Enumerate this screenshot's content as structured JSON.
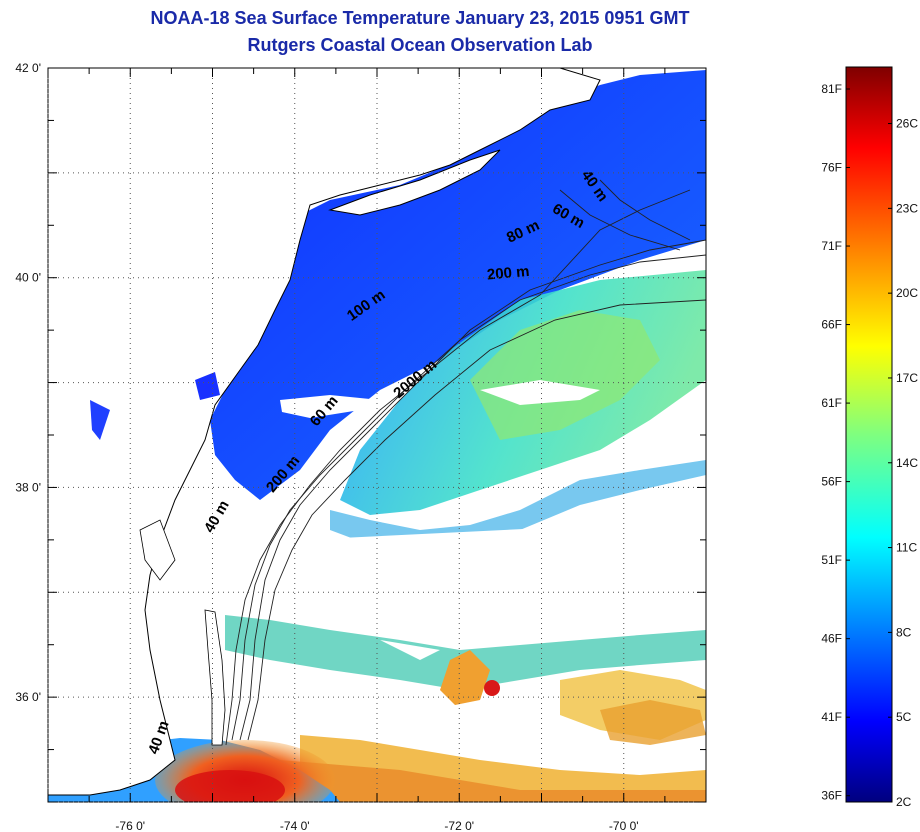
{
  "header": {
    "title": "NOAA-18 Sea Surface Temperature January 23, 2015 0951 GMT",
    "subtitle": "Rutgers Coastal Ocean Observation Lab"
  },
  "map": {
    "lon_range": [
      -77,
      -69
    ],
    "lat_range": [
      35,
      42
    ],
    "lon_ticks": [
      {
        "value": -76,
        "label": "-76 0'"
      },
      {
        "value": -74,
        "label": "-74 0'"
      },
      {
        "value": -72,
        "label": "-72 0'"
      },
      {
        "value": -70,
        "label": "-70 0'"
      }
    ],
    "lat_ticks": [
      {
        "value": 42,
        "label": "42 0'"
      },
      {
        "value": 40,
        "label": "40 0'"
      },
      {
        "value": 38,
        "label": "38 0'"
      },
      {
        "value": 36,
        "label": "36 0'"
      }
    ],
    "grid": "dotted",
    "contour_labels": [
      {
        "text": "40 m",
        "lon": -70.4,
        "lat": 40.85,
        "angle": 55
      },
      {
        "text": "60 m",
        "lon": -70.7,
        "lat": 40.55,
        "angle": 30
      },
      {
        "text": "80 m",
        "lon": -71.2,
        "lat": 40.4,
        "angle": -25
      },
      {
        "text": "200 m",
        "lon": -71.4,
        "lat": 40.0,
        "angle": -5
      },
      {
        "text": "100 m",
        "lon": -73.1,
        "lat": 39.7,
        "angle": -35
      },
      {
        "text": "2000 m",
        "lon": -72.5,
        "lat": 39.0,
        "angle": -40
      },
      {
        "text": "60 m",
        "lon": -73.6,
        "lat": 38.7,
        "angle": -50
      },
      {
        "text": "200 m",
        "lon": -74.1,
        "lat": 38.1,
        "angle": -50
      },
      {
        "text": "40 m",
        "lon": -74.9,
        "lat": 37.7,
        "angle": -60
      },
      {
        "text": "40 m",
        "lon": -75.6,
        "lat": 35.6,
        "angle": -70
      }
    ]
  },
  "colorbar": {
    "range_c": [
      2,
      28
    ],
    "f_labels": [
      "81F",
      "76F",
      "71F",
      "66F",
      "61F",
      "56F",
      "51F",
      "46F",
      "41F",
      "36F"
    ],
    "f_values": [
      81,
      76,
      71,
      66,
      61,
      56,
      51,
      46,
      41,
      36
    ],
    "c_labels": [
      "26C",
      "23C",
      "20C",
      "17C",
      "14C",
      "11C",
      "8C",
      "5C",
      "2C"
    ],
    "c_values": [
      26,
      23,
      20,
      17,
      14,
      11,
      8,
      5,
      2
    ]
  }
}
